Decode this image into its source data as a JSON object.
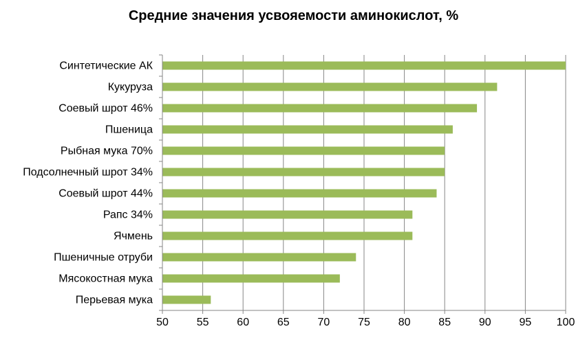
{
  "chart_data": {
    "type": "bar",
    "orientation": "horizontal",
    "title": "Средние значения усвояемости аминокислот, %",
    "categories": [
      "Синтетические АК",
      "Кукуруза",
      "Соевый шрот 46%",
      "Пшеница",
      "Рыбная мука 70%",
      "Подсолнечный шрот 34%",
      "Соевый шрот 44%",
      "Рапс 34%",
      "Ячмень",
      "Пшеничные отруби",
      "Мясокостная мука",
      "Перьевая мука"
    ],
    "values": [
      100,
      91.5,
      89,
      86,
      85,
      85,
      84,
      81,
      81,
      74,
      72,
      56
    ],
    "xlim": [
      50,
      100
    ],
    "xticks": [
      50,
      55,
      60,
      65,
      70,
      75,
      80,
      85,
      90,
      95,
      100
    ],
    "grid": "vertical",
    "legend": "none",
    "bar_color": "#9BBB59",
    "grid_color": "#868686"
  }
}
